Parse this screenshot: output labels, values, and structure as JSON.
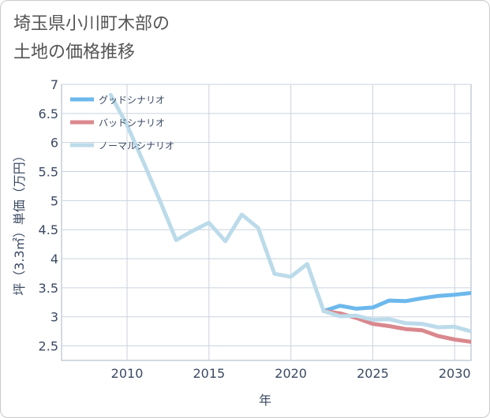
{
  "title": {
    "line1": "埼玉県小川町木部の",
    "line2": "土地の価格推移"
  },
  "chart_data": {
    "type": "line",
    "xlabel": "年",
    "ylabel": "坪（3.3㎡）単価（万円）",
    "xlim": [
      2006,
      2031
    ],
    "ylim": [
      2.25,
      7
    ],
    "xticks": [
      2010,
      2015,
      2020,
      2025,
      2030
    ],
    "yticks": [
      2.5,
      3,
      3.5,
      4,
      4.5,
      5,
      5.5,
      6,
      6.5,
      7
    ],
    "ytick_labels": [
      "2.5",
      "3",
      "3.5",
      "4",
      "4.5",
      "5",
      "5.5",
      "6",
      "6.5",
      "7"
    ],
    "grid": true,
    "legend_position": "top-left",
    "series": [
      {
        "name": "グッドシナリオ",
        "color": "#6cb8ec",
        "x": [
          2022,
          2023,
          2024,
          2025,
          2026,
          2027,
          2028,
          2029,
          2030,
          2031
        ],
        "y": [
          3.1,
          3.19,
          3.14,
          3.16,
          3.28,
          3.27,
          3.32,
          3.36,
          3.38,
          3.41
        ]
      },
      {
        "name": "バッドシナリオ",
        "color": "#d9888e",
        "x": [
          2022,
          2023,
          2024,
          2025,
          2026,
          2027,
          2028,
          2029,
          2030,
          2031
        ],
        "y": [
          3.1,
          3.06,
          2.98,
          2.88,
          2.84,
          2.79,
          2.77,
          2.67,
          2.61,
          2.57
        ]
      },
      {
        "name": "ノーマルシナリオ",
        "color": "#bcdbea",
        "x": [
          2009,
          2010,
          2011,
          2012,
          2013,
          2014,
          2015,
          2016,
          2017,
          2018,
          2019,
          2020,
          2021,
          2022,
          2023,
          2024,
          2025,
          2026,
          2027,
          2028,
          2029,
          2030,
          2031
        ],
        "y": [
          6.82,
          6.3,
          5.66,
          5.0,
          4.32,
          4.48,
          4.62,
          4.3,
          4.76,
          4.53,
          3.74,
          3.69,
          3.91,
          3.1,
          3.01,
          3.02,
          2.95,
          2.96,
          2.89,
          2.88,
          2.82,
          2.83,
          2.75
        ]
      }
    ]
  }
}
